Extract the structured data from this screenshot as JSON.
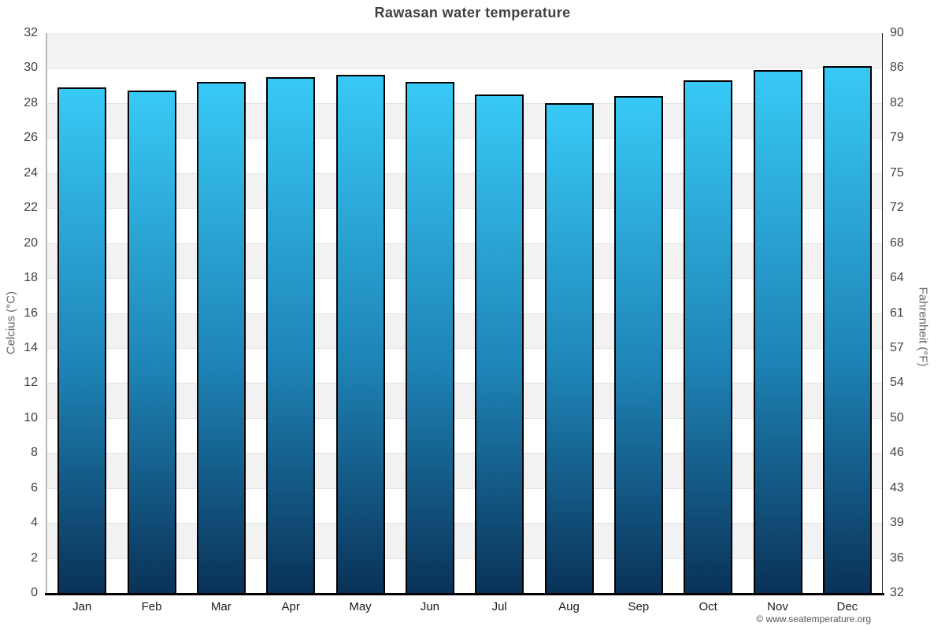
{
  "page": {
    "copyright": "© www.seatemperature.org"
  },
  "chart_data": {
    "type": "bar",
    "title": "Rawasan water temperature",
    "categories": [
      "Jan",
      "Feb",
      "Mar",
      "Apr",
      "May",
      "Jun",
      "Jul",
      "Aug",
      "Sep",
      "Oct",
      "Nov",
      "Dec"
    ],
    "values": [
      28.9,
      28.7,
      29.2,
      29.5,
      29.6,
      29.2,
      28.5,
      28.0,
      28.4,
      29.3,
      29.9,
      30.1
    ],
    "unit": "°C",
    "ylabel_left": "Celcius (°C)",
    "ylabel_right": "Fahrenheit (°F)",
    "ylim_celsius": [
      0,
      32
    ],
    "celsius_ticks": [
      0,
      2,
      4,
      6,
      8,
      10,
      12,
      14,
      16,
      18,
      20,
      22,
      24,
      26,
      28,
      30,
      32
    ],
    "fahrenheit_tick_labels": [
      "32",
      "36",
      "39",
      "43",
      "46",
      "50",
      "54",
      "57",
      "61",
      "64",
      "68",
      "72",
      "75",
      "79",
      "82",
      "86",
      "90"
    ],
    "grid": "alternating horizontal bands every 2°C",
    "legend": "none",
    "colors": {
      "bar_top": "#38c9f6",
      "bar_mid": "#1e84b6",
      "bar_bottom": "#0a3258",
      "bar_border": "#000000",
      "band_gray": "#f2f2f2",
      "band_white": "#ffffff",
      "gridline": "#e2e2e2",
      "axis_left_line": "#b9b9b9",
      "axis_right_line": "#222222",
      "axis_bottom_line": "#000000",
      "title_color": "#404040",
      "tick_label_color": "#444444",
      "month_label_color": "#1a1a1a",
      "axis_title_color": "#666666",
      "copyright_color": "#555555"
    }
  }
}
